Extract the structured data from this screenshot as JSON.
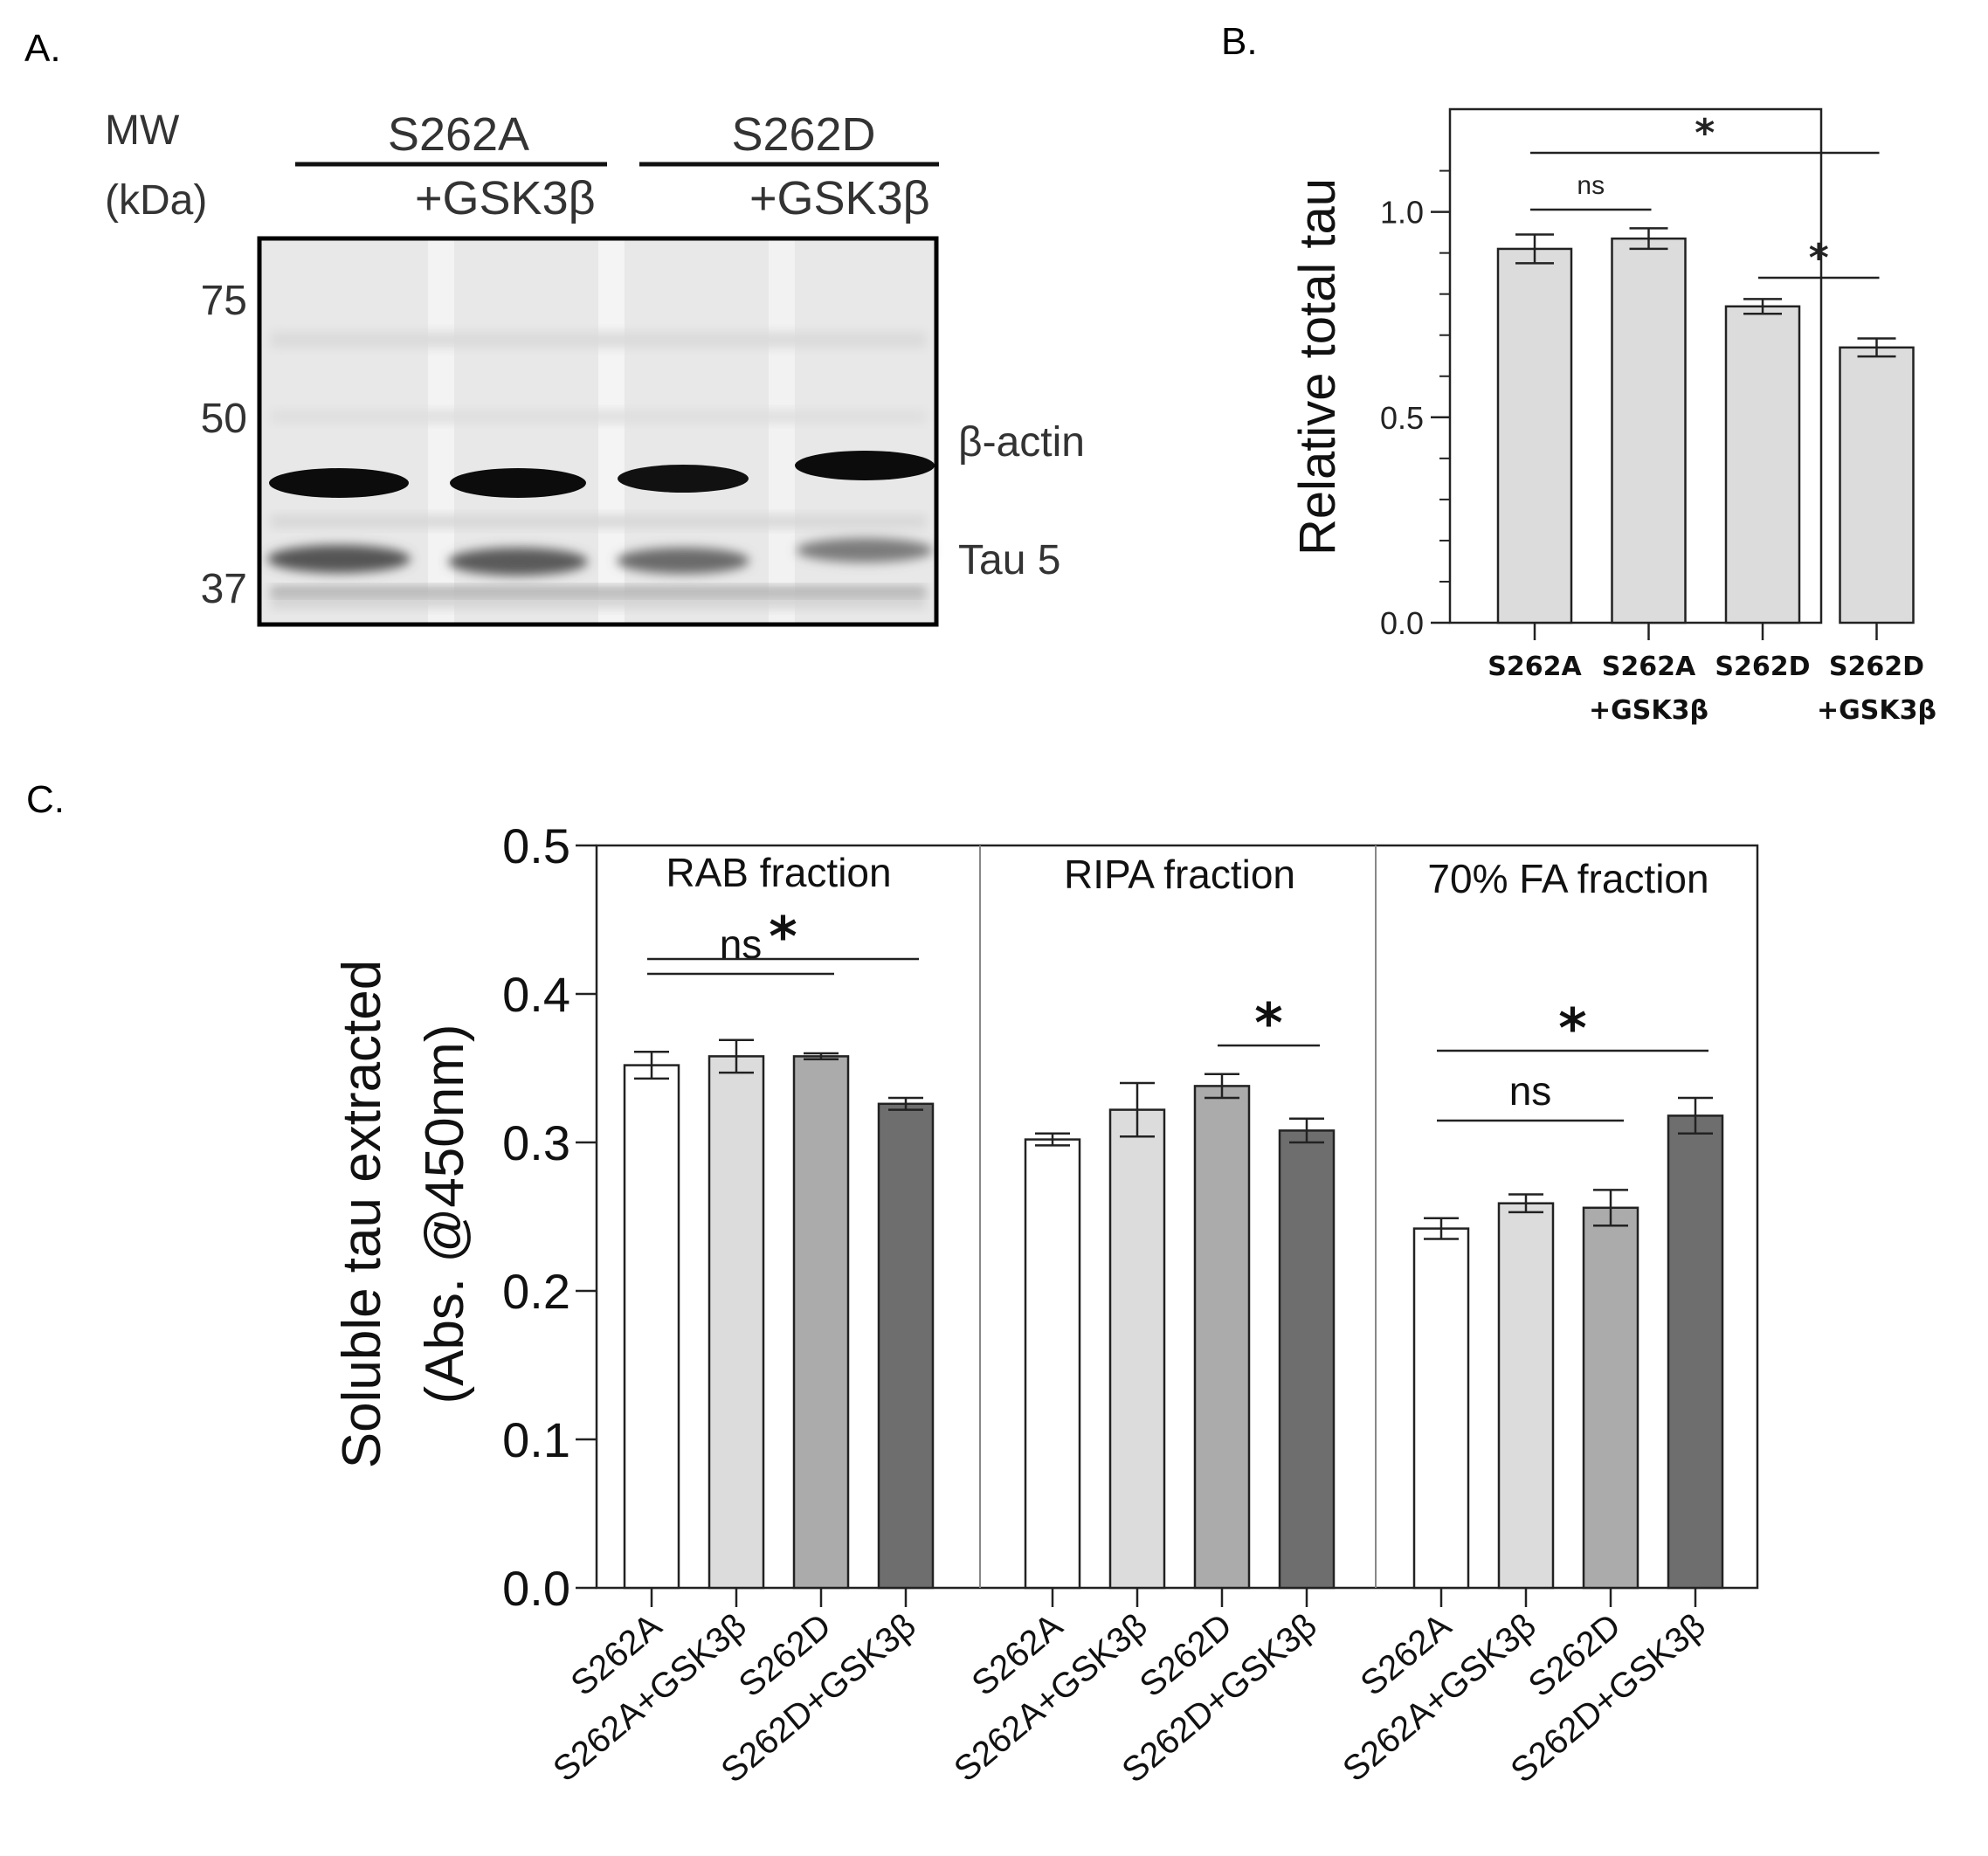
{
  "panel_a": {
    "label": "A.",
    "mw_line1": "MW",
    "mw_line2": "(kDa)",
    "groups": [
      {
        "name": "S262A",
        "sub": "+GSK3β"
      },
      {
        "name": "S262D",
        "sub": "+GSK3β"
      }
    ],
    "markers": [
      "75",
      "50",
      "37"
    ],
    "band_labels": [
      "β-actin",
      "Tau 5"
    ]
  },
  "chart_data": [
    {
      "panel": "B.",
      "type": "bar",
      "categories": [
        "S262A",
        "S262A +GSK3β",
        "S262D",
        "S262D +GSK3β"
      ],
      "category_lines": [
        [
          "S262A"
        ],
        [
          "S262A",
          "+GSK3β"
        ],
        [
          "S262D"
        ],
        [
          "S262D",
          "+GSK3β"
        ]
      ],
      "values": [
        0.91,
        0.935,
        0.77,
        0.67
      ],
      "errors": [
        0.035,
        0.025,
        0.018,
        0.022
      ],
      "ylabel": "Relative total tau",
      "ylim": [
        0,
        1.25
      ],
      "yticks": [
        "0.0",
        "0.5",
        "1.0"
      ],
      "grid": false,
      "significance": [
        {
          "from": 0,
          "to": 1,
          "label": "ns"
        },
        {
          "from": 0,
          "to": 3,
          "label": "*"
        },
        {
          "from": 2,
          "to": 3,
          "label": "*"
        }
      ],
      "bar_color": "#dcdcdc"
    },
    {
      "panel": "C.",
      "type": "bar",
      "ylabel_line1": "Soluble tau extracted",
      "ylabel_line2": "(Abs. @450nm)",
      "ylim": [
        0,
        0.5
      ],
      "yticks": [
        "0.0",
        "0.1",
        "0.2",
        "0.3",
        "0.4",
        "0.5"
      ],
      "grid": false,
      "categories": [
        "S262A",
        "S262A+GSK3β",
        "S262D",
        "S262D+GSK3β"
      ],
      "bar_colors": [
        "#ffffff",
        "#dcdcdc",
        "#ababab",
        "#6e6e6e"
      ],
      "groups": [
        {
          "name": "RAB fraction",
          "values": [
            0.352,
            0.358,
            0.358,
            0.326
          ],
          "errors": [
            0.009,
            0.011,
            0.002,
            0.004
          ],
          "significance": [
            {
              "from": 0,
              "to": 2,
              "label": "ns"
            },
            {
              "from": 0,
              "to": 3,
              "label": "*"
            }
          ]
        },
        {
          "name": "RIPA fraction",
          "values": [
            0.302,
            0.322,
            0.338,
            0.308
          ],
          "errors": [
            0.004,
            0.018,
            0.008,
            0.008
          ],
          "significance": [
            {
              "from": 2,
              "to": 3,
              "label": "*"
            }
          ]
        },
        {
          "name": "70% FA fraction",
          "values": [
            0.242,
            0.259,
            0.256,
            0.318
          ],
          "errors": [
            0.007,
            0.006,
            0.012,
            0.012
          ],
          "significance": [
            {
              "from": 0,
              "to": 2,
              "label": "ns"
            },
            {
              "from": 0,
              "to": 3,
              "label": "*"
            }
          ]
        }
      ]
    }
  ]
}
